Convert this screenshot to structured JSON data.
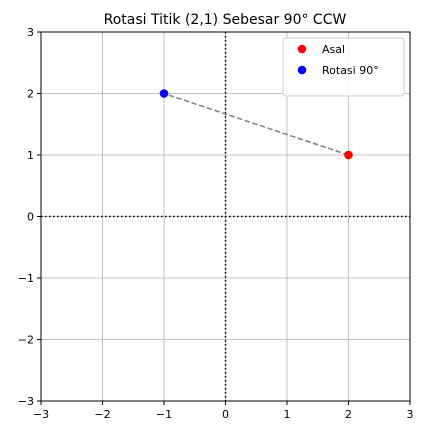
{
  "chart_data": {
    "type": "scatter",
    "title": "Rotasi Titik (2,1) Sebesar 90° CCW",
    "xlabel": "",
    "ylabel": "",
    "xlim": [
      -3,
      3
    ],
    "ylim": [
      -3,
      3
    ],
    "xticks": [
      -3,
      -2,
      -1,
      0,
      1,
      2,
      3
    ],
    "yticks": [
      -3,
      -2,
      -1,
      0,
      1,
      2,
      3
    ],
    "xtick_labels": [
      "−3",
      "−2",
      "−1",
      "0",
      "1",
      "2",
      "3"
    ],
    "ytick_labels": [
      "−3",
      "−2",
      "−1",
      "0",
      "1",
      "2",
      "3"
    ],
    "grid": true,
    "axis_lines": {
      "x": 0,
      "y": 0,
      "style": "dotted",
      "color": "#000000"
    },
    "series": [
      {
        "name": "Asal",
        "x": [
          2
        ],
        "y": [
          1
        ],
        "color": "#ff0000",
        "marker": "circle"
      },
      {
        "name": "Rotasi 90°",
        "x": [
          -1
        ],
        "y": [
          2
        ],
        "color": "#0000ff",
        "marker": "circle"
      }
    ],
    "connector": {
      "from": [
        2,
        1
      ],
      "to": [
        -1,
        2
      ],
      "style": "dashed",
      "color": "#808080"
    },
    "legend": {
      "position": "top-right"
    }
  }
}
